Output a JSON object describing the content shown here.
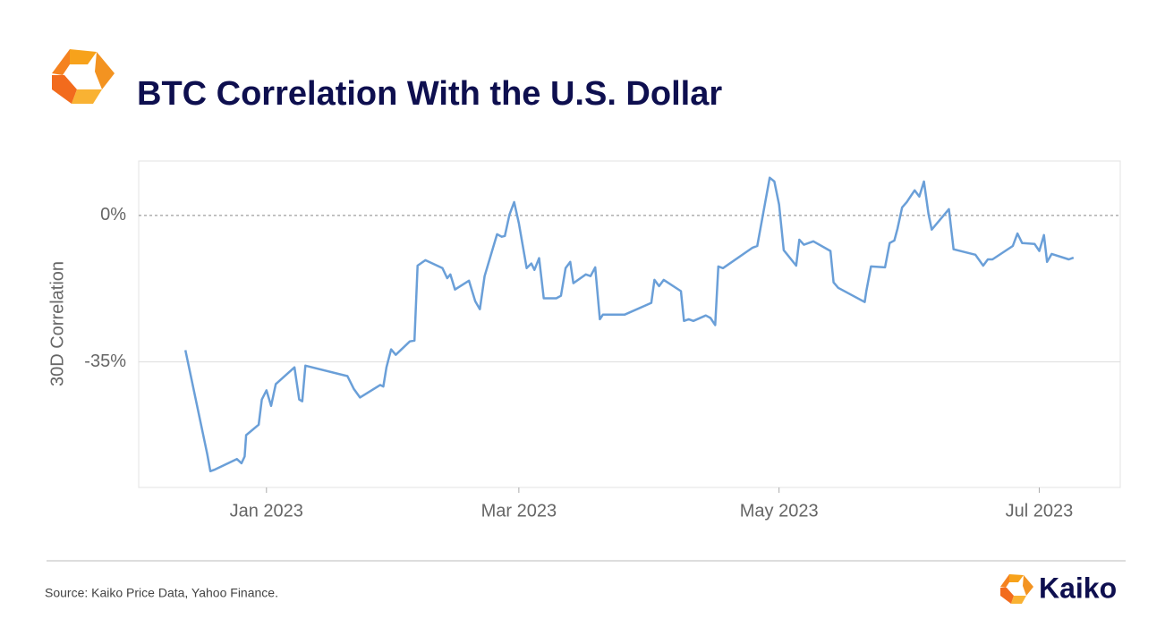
{
  "chart_data": {
    "type": "line",
    "title": "BTC Correlation With the U.S. Dollar",
    "y_label": "30D Correlation",
    "source": "Source: Kaiko Price Data, Yahoo Finance.",
    "brand": "Kaiko",
    "grid": true,
    "xlim": [
      2022.918,
      2023.548
    ],
    "xticks": [
      {
        "value": 2023.0,
        "label": "Jan 2023"
      },
      {
        "value": 2023.162,
        "label": "Mar 2023"
      },
      {
        "value": 2023.329,
        "label": "May 2023"
      },
      {
        "value": 2023.496,
        "label": "Jul 2023"
      }
    ],
    "ylim": [
      -65,
      13
    ],
    "yticks": [
      {
        "value": 0,
        "label": "0%"
      },
      {
        "value": -35,
        "label": "-35%"
      }
    ],
    "x": [
      2022.948,
      2022.962,
      2022.964,
      2022.967,
      2022.981,
      2022.984,
      2022.986,
      2022.987,
      2022.995,
      2022.997,
      2023.0,
      2023.003,
      2023.006,
      2023.018,
      2023.021,
      2023.023,
      2023.025,
      2023.052,
      2023.056,
      2023.06,
      2023.073,
      2023.075,
      2023.077,
      2023.08,
      2023.083,
      2023.092,
      2023.095,
      2023.097,
      2023.102,
      2023.113,
      2023.116,
      2023.118,
      2023.121,
      2023.13,
      2023.134,
      2023.137,
      2023.14,
      2023.148,
      2023.151,
      2023.153,
      2023.156,
      2023.159,
      2023.162,
      2023.167,
      2023.17,
      2023.172,
      2023.175,
      2023.178,
      2023.186,
      2023.189,
      2023.192,
      2023.195,
      2023.197,
      2023.205,
      2023.208,
      2023.211,
      2023.214,
      2023.216,
      2023.23,
      2023.247,
      2023.249,
      2023.252,
      2023.255,
      2023.266,
      2023.268,
      2023.271,
      2023.274,
      2023.282,
      2023.285,
      2023.288,
      2023.29,
      2023.293,
      2023.312,
      2023.315,
      2023.323,
      2023.326,
      2023.329,
      2023.332,
      2023.34,
      2023.342,
      2023.345,
      2023.351,
      2023.362,
      2023.364,
      2023.367,
      2023.384,
      2023.385,
      2023.388,
      2023.397,
      2023.4,
      2023.403,
      2023.405,
      2023.408,
      2023.411,
      2023.416,
      2023.419,
      2023.422,
      2023.425,
      2023.427,
      2023.438,
      2023.441,
      2023.455,
      2023.46,
      2023.463,
      2023.466,
      2023.479,
      2023.482,
      2023.485,
      2023.493,
      2023.496,
      2023.499,
      2023.501,
      2023.504,
      2023.515,
      2023.518
    ],
    "series": [
      {
        "name": "30D Correlation",
        "color": "#6a9fd8",
        "values": [
          -32.2,
          -57,
          -61.1,
          -60.7,
          -58.2,
          -59.2,
          -57.6,
          -52.5,
          -50,
          -44,
          -41.8,
          -45.5,
          -40.3,
          -36.3,
          -44,
          -44.4,
          -35.9,
          -38.4,
          -41.4,
          -43.5,
          -40.5,
          -40.9,
          -36.3,
          -32,
          -33.3,
          -30.1,
          -29.9,
          -12,
          -10.7,
          -12.6,
          -15,
          -14.1,
          -17.7,
          -15.6,
          -20.5,
          -22.4,
          -14.5,
          -4.5,
          -5.1,
          -4.9,
          0.2,
          3.2,
          -1.9,
          -12.6,
          -11.5,
          -13,
          -10.2,
          -19.8,
          -19.8,
          -19.2,
          -12.6,
          -11.1,
          -16.2,
          -14.1,
          -14.5,
          -12.4,
          -24.8,
          -23.7,
          -23.7,
          -20.9,
          -15.4,
          -16.9,
          -15.4,
          -18.1,
          -25.2,
          -24.8,
          -25.2,
          -23.9,
          -24.5,
          -26.2,
          -12.2,
          -12.6,
          -7.7,
          -7.3,
          9,
          8.1,
          2.6,
          -8.3,
          -12,
          -5.8,
          -7,
          -6.2,
          -8.5,
          -16,
          -17.3,
          -20.7,
          -18.1,
          -12.2,
          -12.4,
          -6.6,
          -6,
          -3.2,
          1.9,
          3.2,
          6,
          4.5,
          8.1,
          0.2,
          -3.4,
          1.5,
          -8.1,
          -9.4,
          -12,
          -10.5,
          -10.5,
          -7.3,
          -4.3,
          -6.6,
          -6.8,
          -8.5,
          -4.7,
          -11.1,
          -9.2,
          -10.5,
          -10.1
        ]
      }
    ]
  }
}
